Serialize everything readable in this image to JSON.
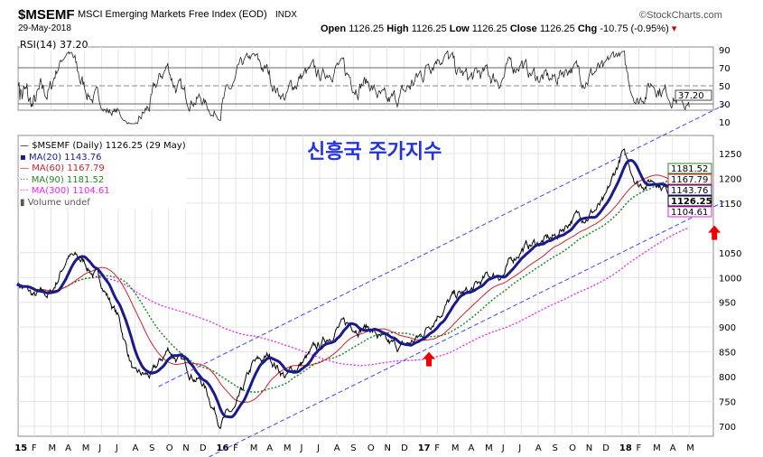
{
  "header": {
    "symbol": "$MSEMF",
    "name": "MSCI Emerging Markets Free Index (EOD)",
    "exchange": "INDX",
    "date": "29-May-2018",
    "brand": "©StockCharts.com",
    "open_label": "Open",
    "open": "1126.25",
    "high_label": "High",
    "high": "1126.25",
    "low_label": "Low",
    "low": "1126.25",
    "close_label": "Close",
    "close": "1126.25",
    "chg_label": "Chg",
    "chg": "-10.75 (-0.95%)"
  },
  "rsi_label": "RSI(14) 37.20",
  "legend": {
    "main": "$MSEMF (Daily) 1126.25 (29 May)",
    "ma20": "MA(20) 1143.76",
    "ma60": "MA(60) 1167.79",
    "ma90": "MA(90) 1181.52",
    "ma300": "MA(300) 1104.61",
    "volume": "Volume undef"
  },
  "annotation_title": "신흥국 주가지수",
  "colors": {
    "price": "#000000",
    "ma20": "#1a1a8c",
    "ma60": "#d0202a",
    "ma90": "#228822",
    "ma300": "#ee22ee",
    "trend": "#4444ee",
    "arrow": "#ee0000"
  },
  "chart_data": {
    "type": "line",
    "title": "$MSEMF MSCI Emerging Markets Free Index (EOD)",
    "x": [
      "15",
      "F",
      "M",
      "A",
      "M",
      "J",
      "J",
      "A",
      "S",
      "O",
      "N",
      "D",
      "16",
      "F",
      "M",
      "A",
      "M",
      "J",
      "J",
      "A",
      "S",
      "O",
      "N",
      "D",
      "17",
      "F",
      "M",
      "A",
      "M",
      "J",
      "J",
      "A",
      "S",
      "O",
      "N",
      "D",
      "18",
      "F",
      "M",
      "A",
      "M"
    ],
    "close": [
      990,
      960,
      965,
      1045,
      1030,
      990,
      920,
      800,
      800,
      855,
      820,
      790,
      715,
      730,
      820,
      840,
      800,
      830,
      860,
      900,
      905,
      900,
      860,
      858,
      880,
      930,
      960,
      970,
      1000,
      1010,
      1060,
      1070,
      1080,
      1120,
      1130,
      1150,
      1250,
      1190,
      1200,
      1170,
      1126
    ],
    "price_ylim": [
      680,
      1290
    ],
    "price_ticks": [
      700,
      750,
      800,
      850,
      900,
      950,
      1000,
      1050,
      1150,
      1200,
      1250
    ],
    "rsi_ylim": [
      5,
      95
    ],
    "rsi_ticks": [
      10,
      30,
      50,
      70,
      90
    ],
    "rsi_last": "37.20",
    "last_labels": {
      "ma90": "1181.52",
      "ma60": "1167.79",
      "ma20": "1143.76",
      "close": "1126.25",
      "ma300": "1104.61"
    },
    "trendlines": [
      {
        "from": [
          8.9,
          780
        ],
        "to": [
          42.7,
          1350
        ]
      },
      {
        "from": [
          11.9,
          638
        ],
        "to": [
          42.7,
          1155
        ]
      }
    ],
    "arrows": [
      [
        25,
        850
      ],
      [
        42,
        1105
      ]
    ]
  }
}
